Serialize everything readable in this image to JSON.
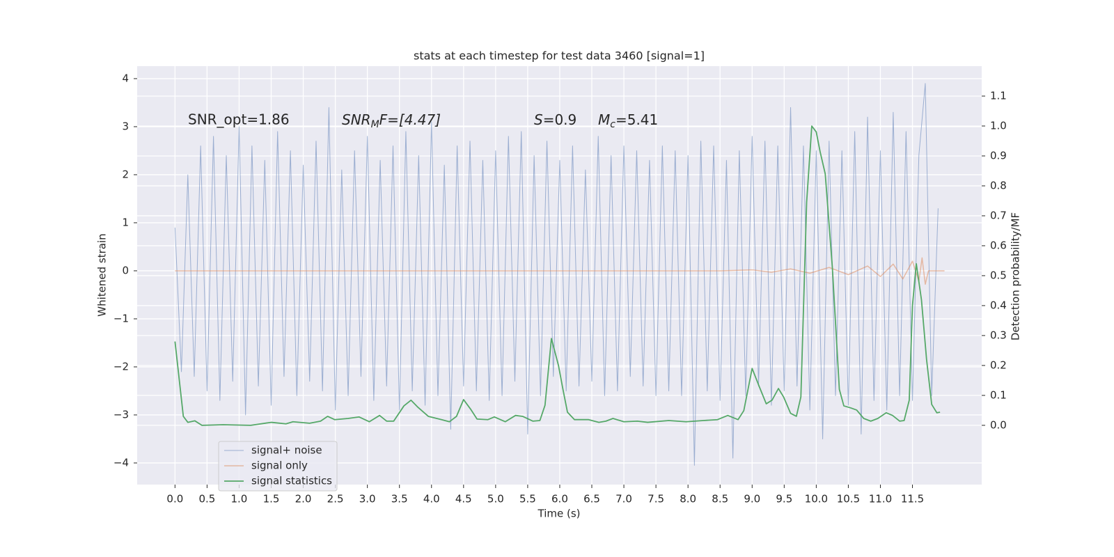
{
  "chart_data": {
    "type": "line",
    "title": "stats at each timestep for test data 3460 [signal=1]",
    "xlabel": "Time (s)",
    "ylabel": "Whitened strain",
    "y2label": "Detection probability/MF",
    "annotations": [
      {
        "text": "SNR_opt=1.86"
      },
      {
        "base": "SNR",
        "sub": "M",
        "rest": "F=[4.47]"
      },
      {
        "base": "S",
        "rest": "=0.9"
      },
      {
        "base": "M",
        "sub": "c",
        "rest": "=5.41"
      }
    ],
    "grid": true,
    "legend": "lower left",
    "xlim": [
      -0.59,
      12.58
    ],
    "ylim": [
      -4.45,
      4.26
    ],
    "y2lim": [
      -0.198,
      1.2
    ],
    "xticks": [
      {
        "value": 0,
        "label": "0.0"
      },
      {
        "value": 0.5,
        "label": "0.5"
      },
      {
        "value": 1,
        "label": "1.0"
      },
      {
        "value": 1.5,
        "label": "1.5"
      },
      {
        "value": 2,
        "label": "2.0"
      },
      {
        "value": 2.5,
        "label": "2.5"
      },
      {
        "value": 3,
        "label": "3.0"
      },
      {
        "value": 3.5,
        "label": "3.5"
      },
      {
        "value": 4,
        "label": "4.0"
      },
      {
        "value": 4.5,
        "label": "4.5"
      },
      {
        "value": 5,
        "label": "5.0"
      },
      {
        "value": 5.5,
        "label": "5.5"
      },
      {
        "value": 6,
        "label": "6.0"
      },
      {
        "value": 6.5,
        "label": "6.5"
      },
      {
        "value": 7,
        "label": "7.0"
      },
      {
        "value": 7.5,
        "label": "7.5"
      },
      {
        "value": 8,
        "label": "8.0"
      },
      {
        "value": 8.5,
        "label": "8.5"
      },
      {
        "value": 9,
        "label": "9.0"
      },
      {
        "value": 9.5,
        "label": "9.5"
      },
      {
        "value": 10,
        "label": "10.0"
      },
      {
        "value": 10.5,
        "label": "10.5"
      },
      {
        "value": 11,
        "label": "11.0"
      },
      {
        "value": 11.5,
        "label": "11.5"
      }
    ],
    "yticks": [
      4,
      3,
      2,
      1,
      0,
      {
        "value": -1,
        "label": "−1"
      },
      {
        "value": -2,
        "label": "−2"
      },
      {
        "value": -3,
        "label": "−3"
      },
      {
        "value": -4,
        "label": "−4"
      }
    ],
    "y2ticks": [
      {
        "value": 0,
        "label": "0.0"
      },
      {
        "value": 0.1,
        "label": "0.1"
      },
      {
        "value": 0.2,
        "label": "0.2"
      },
      {
        "value": 0.3,
        "label": "0.3"
      },
      {
        "value": 0.4,
        "label": "0.4"
      },
      {
        "value": 0.5,
        "label": "0.5"
      },
      {
        "value": 0.6,
        "label": "0.6"
      },
      {
        "value": 0.7,
        "label": "0.7"
      },
      {
        "value": 0.8,
        "label": "0.8"
      },
      {
        "value": 0.9,
        "label": "0.9"
      },
      {
        "value": 1,
        "label": "1.0"
      },
      {
        "value": 1.1,
        "label": "1.1"
      }
    ],
    "series": [
      {
        "name": "signal+ noise",
        "color": "#4c72b0",
        "x": [
          0,
          0.1,
          0.2,
          0.3,
          0.4,
          0.5,
          0.6,
          0.7,
          0.8,
          0.9,
          1,
          1.1,
          1.2,
          1.3,
          1.4,
          1.5,
          1.6,
          1.7,
          1.8,
          1.9,
          2,
          2.1,
          2.2,
          2.3,
          2.4,
          2.5,
          2.6,
          2.7,
          2.8,
          2.9,
          3,
          3.1,
          3.2,
          3.3,
          3.4,
          3.5,
          3.6,
          3.7,
          3.8,
          3.9,
          4,
          4.1,
          4.2,
          4.3,
          4.4,
          4.5,
          4.6,
          4.7,
          4.8,
          4.9,
          5,
          5.1,
          5.2,
          5.3,
          5.4,
          5.5,
          5.6,
          5.7,
          5.8,
          5.9,
          6,
          6.1,
          6.2,
          6.3,
          6.4,
          6.5,
          6.6,
          6.7,
          6.8,
          6.9,
          7,
          7.1,
          7.2,
          7.3,
          7.4,
          7.5,
          7.6,
          7.7,
          7.8,
          7.9,
          8,
          8.1,
          8.2,
          8.3,
          8.4,
          8.5,
          8.6,
          8.7,
          8.8,
          8.9,
          9,
          9.1,
          9.2,
          9.3,
          9.4,
          9.5,
          9.6,
          9.7,
          9.8,
          9.9,
          10,
          10.1,
          10.2,
          10.3,
          10.4,
          10.5,
          10.6,
          10.7,
          10.8,
          10.9,
          11,
          11.1,
          11.2,
          11.3,
          11.4,
          11.5,
          11.6,
          11.7,
          11.8,
          11.9
        ],
        "values": [
          0.9,
          -2.1,
          2.0,
          -2.2,
          2.6,
          -2.5,
          2.8,
          -2.7,
          2.4,
          -2.3,
          3.0,
          -3.0,
          2.6,
          -2.4,
          2.3,
          -2.8,
          2.9,
          -2.2,
          2.5,
          -2.6,
          2.2,
          -2.3,
          2.7,
          -2.5,
          3.4,
          -2.9,
          2.1,
          -2.6,
          2.5,
          -2.2,
          2.8,
          -2.7,
          2.3,
          -2.4,
          2.6,
          -2.9,
          2.9,
          -2.5,
          2.4,
          -2.8,
          3.1,
          -2.6,
          2.2,
          -3.3,
          2.6,
          -2.4,
          2.7,
          -2.5,
          2.3,
          -2.7,
          2.5,
          -2.6,
          2.8,
          -2.3,
          2.9,
          -3.4,
          2.4,
          -2.6,
          2.7,
          -2.2,
          2.3,
          -2.5,
          2.6,
          -2.4,
          2.1,
          -2.3,
          2.8,
          -2.6,
          2.4,
          -2.5,
          2.6,
          -2.2,
          2.5,
          -2.4,
          2.3,
          -2.6,
          2.6,
          -2.5,
          2.5,
          -2.6,
          2.4,
          -4.05,
          2.7,
          -2.5,
          2.6,
          -2.7,
          2.3,
          -3.9,
          2.5,
          -2.6,
          2.8,
          -2.4,
          2.7,
          -2.8,
          2.6,
          -2.5,
          3.4,
          -2.4,
          2.6,
          -2.9,
          2.5,
          -3.5,
          2.7,
          -2.6,
          2.5,
          -2.8,
          2.9,
          -3.4,
          3.2,
          -2.7,
          2.5,
          -2.9,
          3.3,
          -2.6,
          2.9,
          -2.7,
          2.4,
          3.9,
          -2.6,
          1.3
        ]
      },
      {
        "name": "signal only",
        "color": "#dd8452",
        "x": [
          0,
          8.5,
          9.0,
          9.3,
          9.6,
          9.9,
          10.2,
          10.5,
          10.8,
          11.0,
          11.2,
          11.35,
          11.5,
          11.6,
          11.65,
          11.7,
          11.75,
          12.0
        ],
        "values": [
          0,
          0,
          0.02,
          -0.03,
          0.04,
          -0.05,
          0.07,
          -0.08,
          0.1,
          -0.12,
          0.14,
          -0.17,
          0.2,
          -0.22,
          0.27,
          -0.28,
          0,
          0
        ]
      },
      {
        "name": "signal statistics",
        "color": "#55a868",
        "axis": "y2",
        "x": [
          0,
          0.13,
          0.2,
          0.31,
          0.42,
          0.75,
          1.18,
          1.5,
          1.73,
          1.84,
          2.1,
          2.27,
          2.38,
          2.49,
          2.7,
          2.87,
          3.03,
          3.19,
          3.3,
          3.41,
          3.57,
          3.68,
          3.79,
          3.95,
          4.12,
          4.28,
          4.39,
          4.5,
          4.61,
          4.71,
          4.88,
          4.98,
          5.15,
          5.31,
          5.42,
          5.58,
          5.69,
          5.77,
          5.87,
          5.98,
          6.05,
          6.12,
          6.23,
          6.45,
          6.61,
          6.72,
          6.83,
          7.0,
          7.21,
          7.37,
          7.7,
          7.97,
          8.24,
          8.46,
          8.62,
          8.78,
          8.87,
          9.0,
          9.11,
          9.22,
          9.31,
          9.41,
          9.49,
          9.6,
          9.69,
          9.76,
          9.85,
          9.93,
          10.0,
          10.06,
          10.14,
          10.25,
          10.36,
          10.43,
          10.54,
          10.63,
          10.74,
          10.85,
          10.96,
          11.09,
          11.19,
          11.3,
          11.37,
          11.45,
          11.5,
          11.56,
          11.64,
          11.72,
          11.8,
          11.88,
          11.93
        ],
        "values": [
          0.28,
          0.03,
          0.01,
          0.015,
          0.0,
          0.002,
          0.0,
          0.01,
          0.005,
          0.012,
          0.007,
          0.014,
          0.03,
          0.019,
          0.023,
          0.028,
          0.012,
          0.033,
          0.014,
          0.014,
          0.065,
          0.084,
          0.06,
          0.03,
          0.021,
          0.012,
          0.03,
          0.086,
          0.054,
          0.021,
          0.019,
          0.028,
          0.012,
          0.033,
          0.03,
          0.014,
          0.016,
          0.067,
          0.29,
          0.2,
          0.12,
          0.044,
          0.019,
          0.019,
          0.01,
          0.014,
          0.023,
          0.012,
          0.014,
          0.01,
          0.016,
          0.012,
          0.016,
          0.019,
          0.033,
          0.019,
          0.049,
          0.19,
          0.13,
          0.072,
          0.084,
          0.123,
          0.095,
          0.04,
          0.03,
          0.095,
          0.746,
          1.0,
          0.98,
          0.914,
          0.84,
          0.53,
          0.12,
          0.065,
          0.058,
          0.051,
          0.023,
          0.014,
          0.023,
          0.042,
          0.033,
          0.014,
          0.016,
          0.084,
          0.4,
          0.54,
          0.42,
          0.22,
          0.07,
          0.042,
          0.044
        ]
      }
    ]
  }
}
